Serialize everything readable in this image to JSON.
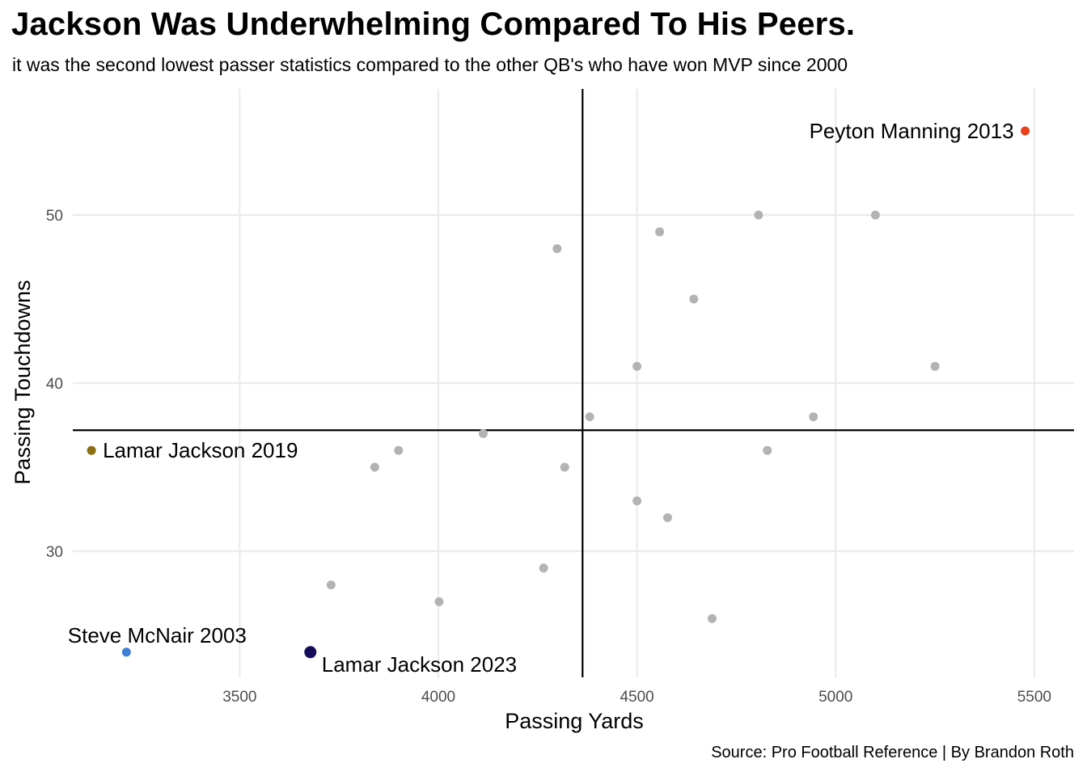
{
  "title": "Jackson Was Underwhelming Compared To His Peers.",
  "subtitle": "it was the second lowest passer statistics compared to the other QB's who have won MVP since 2000",
  "caption": "Source: Pro Football Reference | By Brandon Roth",
  "chart_data": {
    "type": "scatter",
    "xlabel": "Passing Yards",
    "ylabel": "Passing Touchdowns",
    "xlim": [
      3080,
      5600
    ],
    "ylim": [
      22.5,
      57.5
    ],
    "x_ticks": [
      3500,
      4000,
      4500,
      5000,
      5500
    ],
    "y_ticks": [
      30,
      40,
      50
    ],
    "grid": true,
    "reference_lines": {
      "vertical_x": 4363,
      "horizontal_y": 37.2
    },
    "default_color": "#b3b3b3",
    "points": [
      {
        "x": 4806,
        "y": 50
      },
      {
        "x": 5100,
        "y": 50
      },
      {
        "x": 4557,
        "y": 49
      },
      {
        "x": 4299,
        "y": 48
      },
      {
        "x": 4643,
        "y": 45
      },
      {
        "x": 4500,
        "y": 41
      },
      {
        "x": 5250,
        "y": 41
      },
      {
        "x": 4381,
        "y": 38
      },
      {
        "x": 4944,
        "y": 38
      },
      {
        "x": 4113,
        "y": 37
      },
      {
        "x": 3900,
        "y": 36
      },
      {
        "x": 4828,
        "y": 36
      },
      {
        "x": 3840,
        "y": 35
      },
      {
        "x": 4318,
        "y": 35
      },
      {
        "x": 4500,
        "y": 33
      },
      {
        "x": 4577,
        "y": 32
      },
      {
        "x": 4265,
        "y": 29
      },
      {
        "x": 3730,
        "y": 28
      },
      {
        "x": 4002,
        "y": 27
      },
      {
        "x": 4689,
        "y": 26
      }
    ],
    "highlighted": [
      {
        "label": "Peyton Manning 2013",
        "x": 5477,
        "y": 55,
        "color": "#e8401c",
        "label_side": "left"
      },
      {
        "label": "Lamar Jackson 2019",
        "x": 3127,
        "y": 36,
        "color": "#8c6d12",
        "label_side": "right"
      },
      {
        "label": "Steve McNair 2003",
        "x": 3215,
        "y": 24,
        "color": "#3d7fd6",
        "label_side": "above"
      },
      {
        "label": "Lamar Jackson 2023",
        "x": 3678,
        "y": 24,
        "color": "#150c5c",
        "label_side": "below-right"
      }
    ]
  }
}
